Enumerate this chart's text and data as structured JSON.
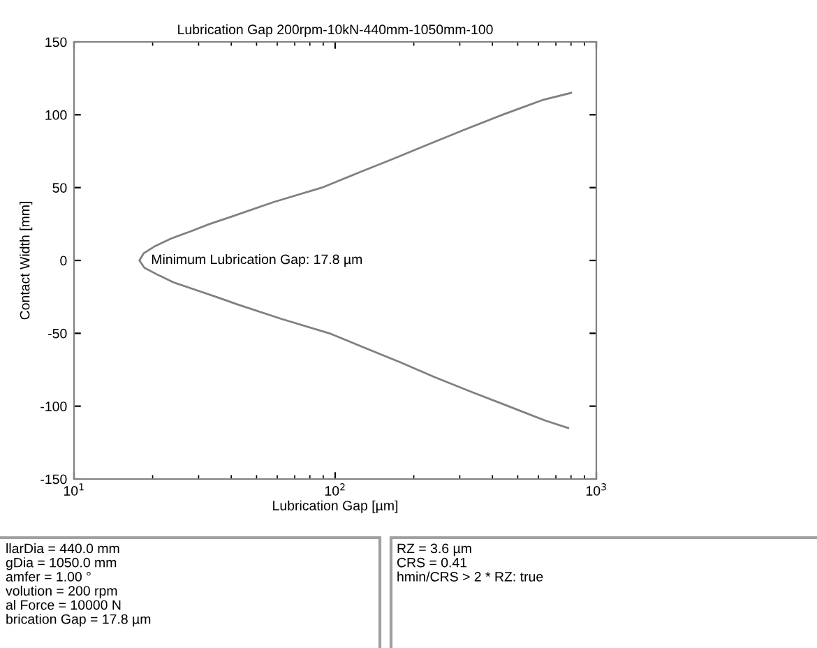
{
  "chart_data": {
    "type": "line",
    "title": "Lubrication Gap 200rpm-10kN-440mm-1050mm-100",
    "xlabel": "Lubrication Gap [µm]",
    "ylabel": "Contact Width [mm]",
    "series": [
      {
        "color": "#808080",
        "x": [
          800,
          620,
          437,
          315,
          230,
          168,
          122,
          89,
          58,
          40,
          33,
          28,
          23.5,
          20.5,
          18.5,
          17.8,
          18.6,
          21,
          24,
          29,
          35,
          42,
          62,
          95,
          130,
          178,
          240,
          330,
          460,
          640,
          780
        ],
        "values": [
          115,
          110,
          100,
          90,
          80,
          70,
          60,
          50,
          40,
          30,
          25,
          20,
          15,
          10,
          5,
          0,
          -5,
          -10,
          -15,
          -20,
          -25,
          -30,
          -40,
          -50,
          -60,
          -70,
          -80,
          -90,
          -100,
          -110,
          -115
        ]
      }
    ],
    "log": "x",
    "xlim": [
      10,
      1000
    ],
    "xticks": [
      {
        "value": 10,
        "label": "10$^{1}$"
      },
      {
        "value": 100,
        "label": "10$^{2}$"
      },
      {
        "value": 1000,
        "label": "10$^{3}$"
      }
    ],
    "ylim": [
      -150,
      150
    ],
    "yticks": [
      -150,
      -100,
      -50,
      0,
      50,
      100,
      150
    ],
    "grid": false,
    "marker": "none",
    "line_style": "solid",
    "annotations": [
      {
        "text": "Minimum Lubrication Gap: 17.8 µm",
        "x": 17.8,
        "y": 0
      },
      "llarDia = 440.0 mm\ngDia = 1050.0 mm\namfer = 1.00 °\nvolution = 200 rpm\nal Force = 10000 N\nbrication Gap = 17.8 µm",
      "RZ = 3.6 µm\nCRS = 0.41\nhmin/CRS > 2 * RZ: true"
    ]
  }
}
